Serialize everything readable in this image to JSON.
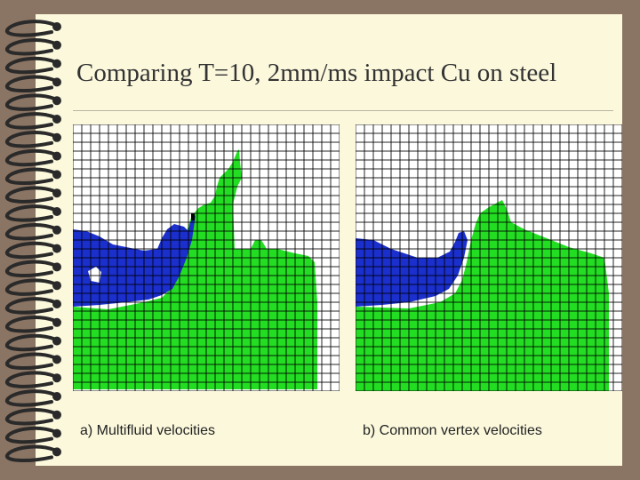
{
  "slide": {
    "title": "Comparing T=10, 2mm/ms impact Cu on steel"
  },
  "panels": [
    {
      "caption": "a) Multifluid velocities"
    },
    {
      "caption": "b) Common vertex velocities"
    }
  ],
  "colors": {
    "background": "#8a7463",
    "page": "#fbf8dc",
    "copper": "#1a2fcc",
    "steel": "#22dd22",
    "grid": "#000000",
    "binding": "#2a2a2a"
  }
}
